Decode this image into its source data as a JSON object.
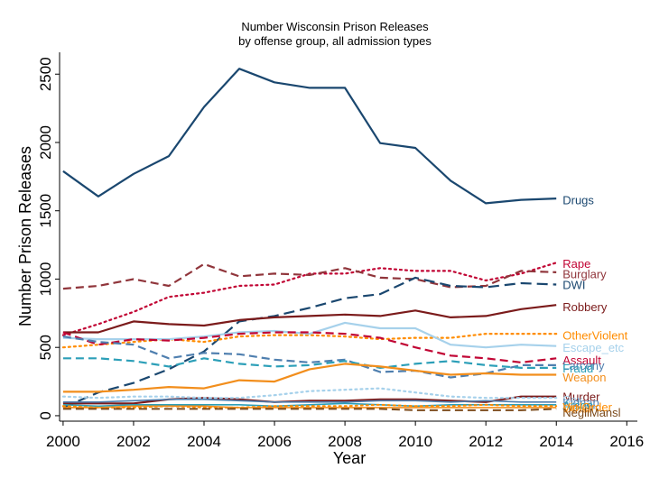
{
  "chart_data": {
    "type": "line",
    "title": "Number Wisconsin Prison Releases",
    "subtitle": "by offense group, all admission types",
    "xlabel": "Year",
    "ylabel": "Number Prison Releases",
    "xlim": [
      1999.9,
      2016.3
    ],
    "ylim": [
      -40,
      2660
    ],
    "xticks": [
      2000,
      2002,
      2004,
      2006,
      2008,
      2010,
      2012,
      2014,
      2016
    ],
    "yticks": [
      0,
      500,
      1000,
      1500,
      2000,
      2500
    ],
    "grid": false,
    "legend": "none",
    "x": [
      2000,
      2001,
      2002,
      2003,
      2004,
      2005,
      2006,
      2007,
      2008,
      2009,
      2010,
      2011,
      2012,
      2013,
      2014
    ],
    "series": [
      {
        "name": "Drugs",
        "color": "#1a476f",
        "dash": "solid",
        "width": 2.2,
        "values": [
          1790,
          1605,
          1770,
          1900,
          2260,
          2540,
          2440,
          2400,
          2400,
          1995,
          1960,
          1720,
          1555,
          1580,
          1590
        ]
      },
      {
        "name": "Rape",
        "color": "#c10534",
        "dash": "dot",
        "width": 2.2,
        "values": [
          590,
          670,
          760,
          870,
          900,
          950,
          960,
          1040,
          1040,
          1080,
          1060,
          1060,
          990,
          1040,
          1120
        ]
      },
      {
        "name": "Burglary",
        "color": "#90353b",
        "dash": "dash",
        "width": 2.2,
        "values": [
          930,
          950,
          1000,
          950,
          1110,
          1020,
          1040,
          1030,
          1080,
          1010,
          1000,
          940,
          950,
          1060,
          1050
        ]
      },
      {
        "name": "DWI",
        "color": "#1a476f",
        "dash": "longdash",
        "width": 2.2,
        "values": [
          60,
          170,
          240,
          340,
          470,
          690,
          730,
          790,
          860,
          890,
          1010,
          950,
          940,
          970,
          960
        ]
      },
      {
        "name": "Robbery",
        "color": "#7b1b1b",
        "dash": "solid",
        "width": 2.2,
        "values": [
          610,
          610,
          690,
          670,
          660,
          700,
          720,
          730,
          740,
          730,
          770,
          720,
          730,
          780,
          810
        ]
      },
      {
        "name": "OtherViolent",
        "color": "#ff8c00",
        "dash": "dot",
        "width": 2.2,
        "values": [
          500,
          520,
          540,
          560,
          540,
          580,
          590,
          590,
          580,
          560,
          570,
          570,
          600,
          600,
          600
        ]
      },
      {
        "name": "Escape_etc",
        "color": "#a6d1eb",
        "dash": "solid",
        "width": 2.2,
        "values": [
          570,
          560,
          560,
          560,
          580,
          610,
          620,
          600,
          680,
          640,
          640,
          520,
          500,
          520,
          510
        ]
      },
      {
        "name": "Assault",
        "color": "#c10534",
        "dash": "dash",
        "width": 2.2,
        "values": [
          610,
          520,
          560,
          550,
          570,
          600,
          610,
          610,
          600,
          570,
          500,
          440,
          420,
          390,
          420
        ]
      },
      {
        "name": "Larceny",
        "color": "#4f7faf",
        "dash": "dash",
        "width": 2.2,
        "values": [
          580,
          540,
          520,
          420,
          460,
          450,
          410,
          390,
          410,
          320,
          330,
          280,
          310,
          370,
          370
        ]
      },
      {
        "name": "Fraud",
        "color": "#2c9fb8",
        "dash": "dash",
        "width": 2.2,
        "values": [
          420,
          420,
          400,
          360,
          420,
          380,
          360,
          370,
          400,
          350,
          380,
          400,
          370,
          350,
          350
        ]
      },
      {
        "name": "Weapon",
        "color": "#f28e1c",
        "dash": "solid",
        "width": 2.2,
        "values": [
          175,
          175,
          190,
          210,
          200,
          260,
          250,
          340,
          380,
          360,
          330,
          300,
          310,
          300,
          300
        ]
      },
      {
        "name": "Murder",
        "color": "#7b1b1b",
        "dash": "solid",
        "width": 2.2,
        "values": [
          90,
          90,
          90,
          120,
          130,
          120,
          100,
          110,
          110,
          120,
          120,
          110,
          100,
          140,
          140
        ]
      },
      {
        "name": "Sex",
        "color": "#a6d1eb",
        "dash": "dot",
        "width": 2.2,
        "values": [
          140,
          130,
          140,
          140,
          130,
          130,
          150,
          180,
          190,
          200,
          170,
          140,
          130,
          130,
          130
        ]
      },
      {
        "name": "Kidnap",
        "color": "#4f7faf",
        "dash": "solid",
        "width": 1.6,
        "values": [
          100,
          100,
          110,
          120,
          120,
          110,
          100,
          100,
          100,
          110,
          110,
          100,
          110,
          100,
          100
        ]
      },
      {
        "name": "Arson",
        "color": "#2c9fb8",
        "dash": "solid",
        "width": 1.6,
        "values": [
          80,
          70,
          80,
          80,
          80,
          80,
          70,
          80,
          90,
          80,
          70,
          80,
          80,
          80,
          80
        ]
      },
      {
        "name": "ViolOrder",
        "color": "#ff8c00",
        "dash": "dot",
        "width": 2.0,
        "values": [
          70,
          60,
          60,
          70,
          60,
          60,
          70,
          70,
          70,
          80,
          70,
          70,
          80,
          70,
          70
        ]
      },
      {
        "name": "Other",
        "color": "#f28e1c",
        "dash": "solid",
        "width": 1.6,
        "values": [
          60,
          60,
          70,
          70,
          70,
          60,
          60,
          60,
          60,
          60,
          60,
          60,
          60,
          60,
          60
        ]
      },
      {
        "name": "NegliMansl",
        "color": "#7b4a1b",
        "dash": "dash",
        "width": 2.0,
        "values": [
          50,
          50,
          50,
          50,
          50,
          50,
          50,
          50,
          50,
          50,
          40,
          40,
          40,
          40,
          50
        ]
      }
    ],
    "labels": [
      {
        "series": "Drugs",
        "text": "Drugs",
        "y": 1580
      },
      {
        "series": "Rape",
        "text": "Rape",
        "y": 1115
      },
      {
        "series": "Burglary",
        "text": "Burglary",
        "y": 1040
      },
      {
        "series": "DWI",
        "text": "DWI",
        "y": 960
      },
      {
        "series": "Robbery",
        "text": "Robbery",
        "y": 800
      },
      {
        "series": "OtherViolent",
        "text": "OtherViolent",
        "y": 590
      },
      {
        "series": "Escape_etc",
        "text": "Escape_etc",
        "y": 500
      },
      {
        "series": "Assault",
        "text": "Assault",
        "y": 410
      },
      {
        "series": "Larceny",
        "text": "Larceny",
        "y": 370
      },
      {
        "series": "Fraud",
        "text": "Fraud",
        "y": 350
      },
      {
        "series": "Weapon",
        "text": "Weapon",
        "y": 285
      },
      {
        "series": "Murder",
        "text": "Murder",
        "y": 140
      },
      {
        "series": "Sex",
        "text": "Sex",
        "y": 120
      },
      {
        "series": "Kidnap",
        "text": "Kidnap",
        "y": 100
      },
      {
        "series": "Arson",
        "text": "Arson",
        "y": 80
      },
      {
        "series": "ViolOrder",
        "text": "ViolOrder",
        "y": 65
      },
      {
        "series": "Other",
        "text": "Other",
        "y": 55
      },
      {
        "series": "NegliMansl",
        "text": "NegliMansl",
        "y": 25
      }
    ]
  }
}
